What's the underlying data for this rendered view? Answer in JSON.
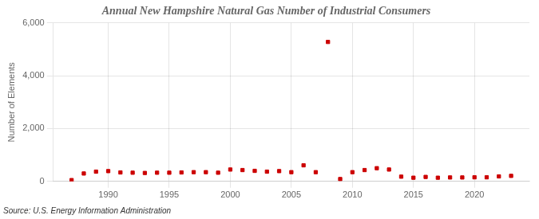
{
  "chart_data": {
    "type": "scatter",
    "title": "Annual New Hampshire Natural Gas Number of Industrial Consumers",
    "y_label": "Number of Elements",
    "annotation": "Source: U.S. Energy Information Administration",
    "x": [
      1987,
      1988,
      1989,
      1990,
      1991,
      1992,
      1993,
      1994,
      1995,
      1996,
      1997,
      1998,
      1999,
      2000,
      2001,
      2002,
      2003,
      2004,
      2005,
      2006,
      2007,
      2008,
      2009,
      2010,
      2011,
      2012,
      2013,
      2014,
      2015,
      2016,
      2017,
      2018,
      2019,
      2020,
      2021,
      2022,
      2023
    ],
    "values": [
      50,
      300,
      370,
      390,
      340,
      330,
      320,
      330,
      330,
      340,
      350,
      350,
      330,
      450,
      430,
      400,
      370,
      390,
      350,
      610,
      350,
      5280,
      90,
      350,
      430,
      500,
      450,
      180,
      140,
      170,
      140,
      150,
      150,
      155,
      155,
      190,
      210
    ],
    "color": "#cc0000",
    "marker": "square",
    "xlim": [
      1985.5,
      2024.5
    ],
    "xticks": [
      1990,
      1995,
      2000,
      2005,
      2010,
      2015,
      2020
    ],
    "ylim": [
      0,
      6000
    ],
    "yticks": [
      0,
      {
        "value": 2000,
        "label": "2,000"
      },
      {
        "value": 4000,
        "label": "4,000"
      },
      {
        "value": 6000,
        "label": "6,000"
      }
    ],
    "grid": true
  }
}
